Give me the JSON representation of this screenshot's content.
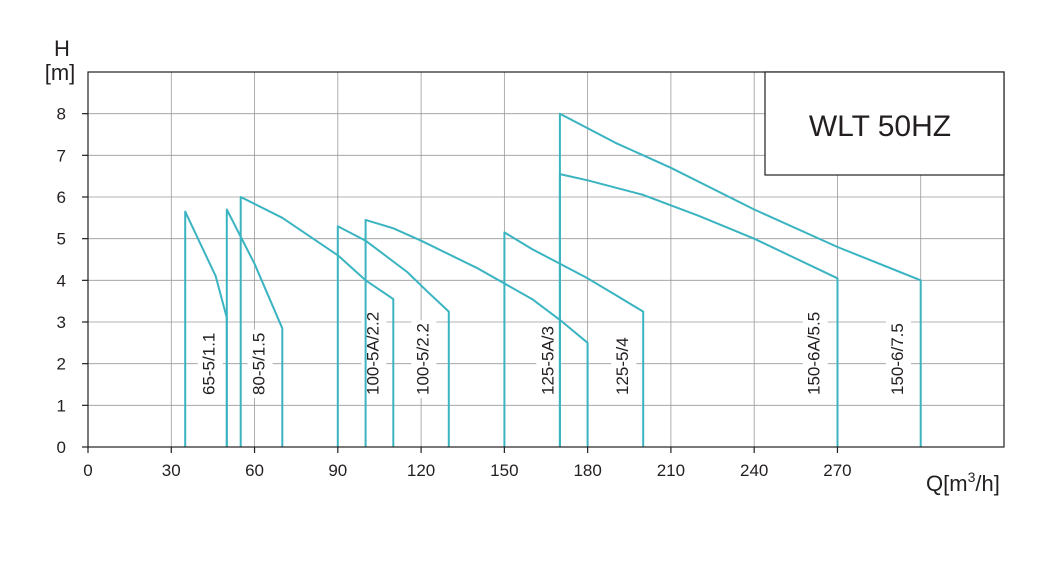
{
  "chart_data": {
    "type": "line",
    "title": "WLT 50HZ",
    "ylabel_top": "H",
    "ylabel_unit": "[m]",
    "xlabel_prefix": "Q[m",
    "xlabel_sup": "3",
    "xlabel_suffix": "/h]",
    "xlim": [
      0,
      330
    ],
    "ylim": [
      0,
      9
    ],
    "xticks": [
      0,
      30,
      60,
      90,
      120,
      150,
      180,
      210,
      240,
      270
    ],
    "yticks": [
      0,
      1,
      2,
      3,
      4,
      5,
      6,
      7,
      8
    ],
    "grid": true,
    "line_color": "#3bb4c1",
    "grid_color": "#9a9a9a",
    "series": [
      {
        "name": "65-5/1.1",
        "label_x": 44,
        "points": [
          [
            35,
            0
          ],
          [
            35,
            5.65
          ],
          [
            46,
            4.1
          ],
          [
            50,
            3.1
          ],
          [
            50,
            0
          ]
        ]
      },
      {
        "name": "80-5/1.5",
        "label_x": 62,
        "points": [
          [
            50,
            0
          ],
          [
            50,
            5.7
          ],
          [
            60,
            4.4
          ],
          [
            70,
            2.85
          ],
          [
            70,
            0
          ]
        ]
      },
      {
        "name": "100-5A/2.2",
        "label_x": 103,
        "points": [
          [
            55,
            0
          ],
          [
            55,
            6.0
          ],
          [
            70,
            5.5
          ],
          [
            90,
            4.6
          ],
          [
            100,
            4.0
          ],
          [
            110,
            3.55
          ],
          [
            110,
            0
          ]
        ]
      },
      {
        "name": "100-5/2.2",
        "label_x": 121,
        "points": [
          [
            90,
            0
          ],
          [
            90,
            5.3
          ],
          [
            100,
            4.95
          ],
          [
            115,
            4.2
          ],
          [
            122,
            3.75
          ],
          [
            130,
            3.25
          ],
          [
            130,
            0
          ]
        ]
      },
      {
        "name": "125-5A/3",
        "label_x": 166,
        "points": [
          [
            100,
            0
          ],
          [
            100,
            5.45
          ],
          [
            110,
            5.25
          ],
          [
            120,
            4.95
          ],
          [
            140,
            4.3
          ],
          [
            160,
            3.55
          ],
          [
            170,
            3.05
          ],
          [
            180,
            2.5
          ],
          [
            180,
            0
          ]
        ]
      },
      {
        "name": "125-5/4",
        "label_x": 193,
        "points": [
          [
            150,
            0
          ],
          [
            150,
            5.15
          ],
          [
            160,
            4.75
          ],
          [
            180,
            4.05
          ],
          [
            190,
            3.65
          ],
          [
            200,
            3.25
          ],
          [
            200,
            0
          ]
        ]
      },
      {
        "name": "150-6A/5.5",
        "label_x": 262,
        "points": [
          [
            170,
            0
          ],
          [
            170,
            6.55
          ],
          [
            180,
            6.4
          ],
          [
            200,
            6.05
          ],
          [
            220,
            5.55
          ],
          [
            240,
            5.0
          ],
          [
            270,
            4.05
          ],
          [
            270,
            0
          ]
        ]
      },
      {
        "name": "150-6/7.5",
        "label_x": 292,
        "points": [
          [
            170,
            0
          ],
          [
            170,
            8.0
          ],
          [
            190,
            7.3
          ],
          [
            210,
            6.7
          ],
          [
            240,
            5.7
          ],
          [
            270,
            4.8
          ],
          [
            300,
            4.0
          ],
          [
            300,
            0
          ]
        ]
      }
    ]
  }
}
